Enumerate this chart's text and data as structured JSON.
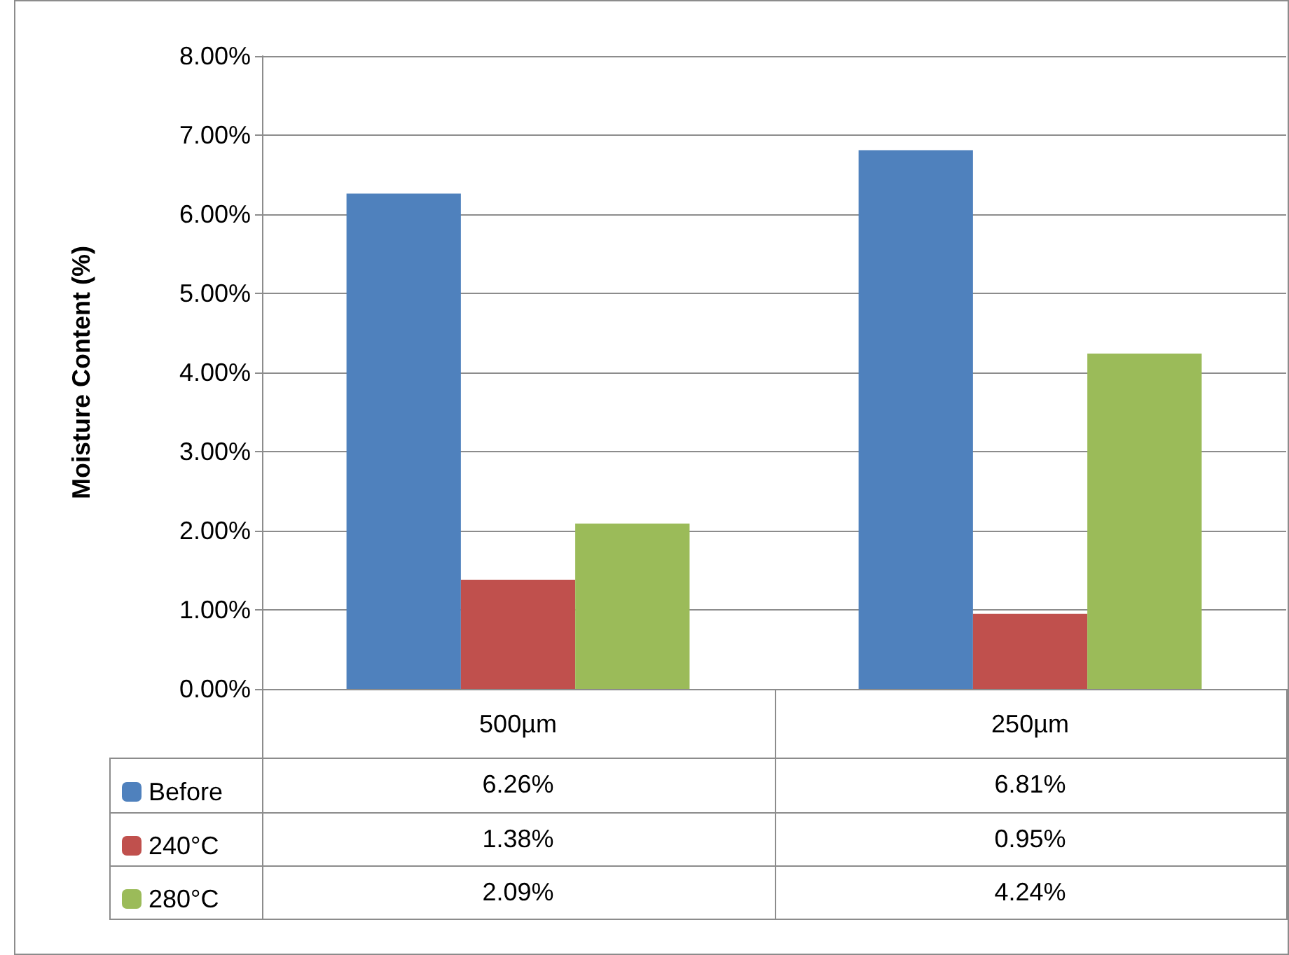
{
  "chart_data": {
    "type": "bar",
    "ylabel": "Moisture Content (%)",
    "categories": [
      "500µm",
      "250µm"
    ],
    "series": [
      {
        "name": "Before",
        "color": "#4f81bd",
        "values": [
          6.26,
          6.81
        ],
        "value_labels": [
          "6.26%",
          "6.81%"
        ]
      },
      {
        "name": "240°C",
        "color": "#c0504d",
        "values": [
          1.38,
          0.95
        ],
        "value_labels": [
          "1.38%",
          "0.95%"
        ]
      },
      {
        "name": "280°C",
        "color": "#9bbb59",
        "values": [
          2.09,
          4.24
        ],
        "value_labels": [
          "2.09%",
          "4.24%"
        ]
      }
    ],
    "ylim": [
      0,
      8
    ],
    "yticks": [
      {
        "value": 0,
        "label": "0.00%"
      },
      {
        "value": 1,
        "label": "1.00%"
      },
      {
        "value": 2,
        "label": "2.00%"
      },
      {
        "value": 3,
        "label": "3.00%"
      },
      {
        "value": 4,
        "label": "4.00%"
      },
      {
        "value": 5,
        "label": "5.00%"
      },
      {
        "value": 6,
        "label": "6.00%"
      },
      {
        "value": 7,
        "label": "7.00%"
      },
      {
        "value": 8,
        "label": "8.00%"
      }
    ],
    "grid": "y",
    "legend": "bottom left"
  }
}
